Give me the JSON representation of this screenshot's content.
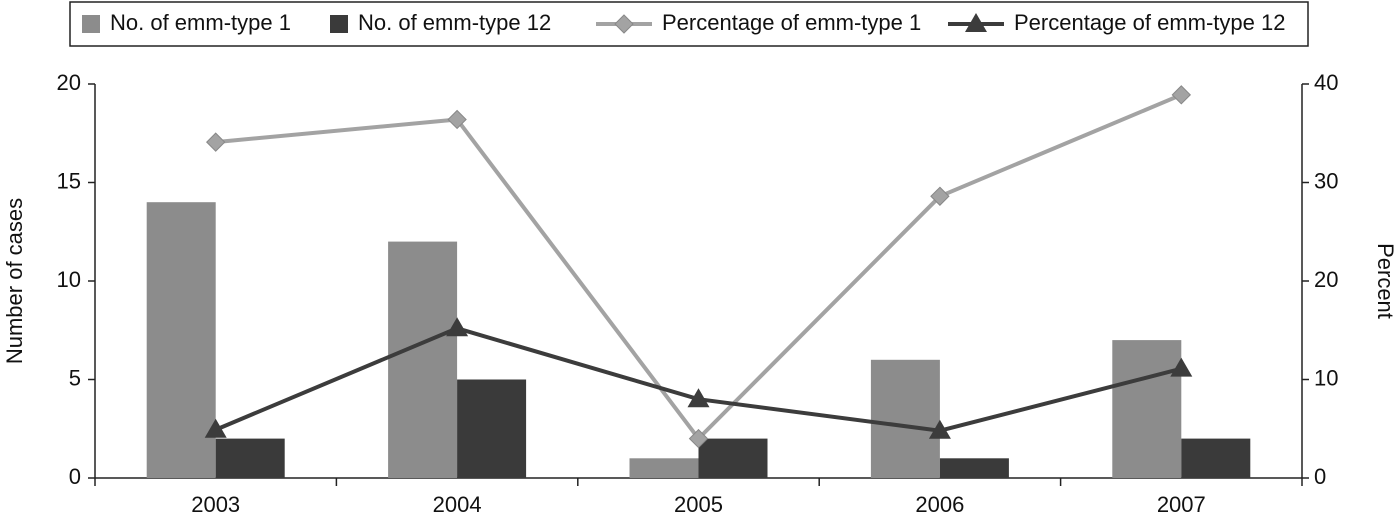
{
  "chart_data": {
    "type": "bar-line",
    "categories": [
      "2003",
      "2004",
      "2005",
      "2006",
      "2007"
    ],
    "series": [
      {
        "name": "No. of emm-type 1",
        "type": "bar",
        "color": "#8c8c8c",
        "values": [
          14,
          12,
          1,
          6,
          7
        ]
      },
      {
        "name": "No. of emm-type 12",
        "type": "bar",
        "color": "#3a3a3a",
        "values": [
          2,
          5,
          2,
          1,
          2
        ]
      },
      {
        "name": "Percentage of emm-type 1",
        "type": "line",
        "marker": "diamond",
        "axis": "y2",
        "color": "#a3a3a3",
        "values": [
          34.1,
          36.4,
          4,
          28.6,
          38.9
        ]
      },
      {
        "name": "Percentage of emm-type 12",
        "type": "line",
        "marker": "triangle",
        "axis": "y2",
        "color": "#3c3c3c",
        "values": [
          4.9,
          15.2,
          8,
          4.8,
          11.1
        ]
      }
    ],
    "ylabel": "Number of cases",
    "y2label": "Percent",
    "ylim": [
      0,
      20
    ],
    "yticks": [
      0,
      5,
      10,
      15,
      20
    ],
    "y2lim": [
      0,
      40
    ],
    "y2ticks": [
      0,
      10,
      20,
      30,
      40
    ],
    "legend": "top"
  }
}
